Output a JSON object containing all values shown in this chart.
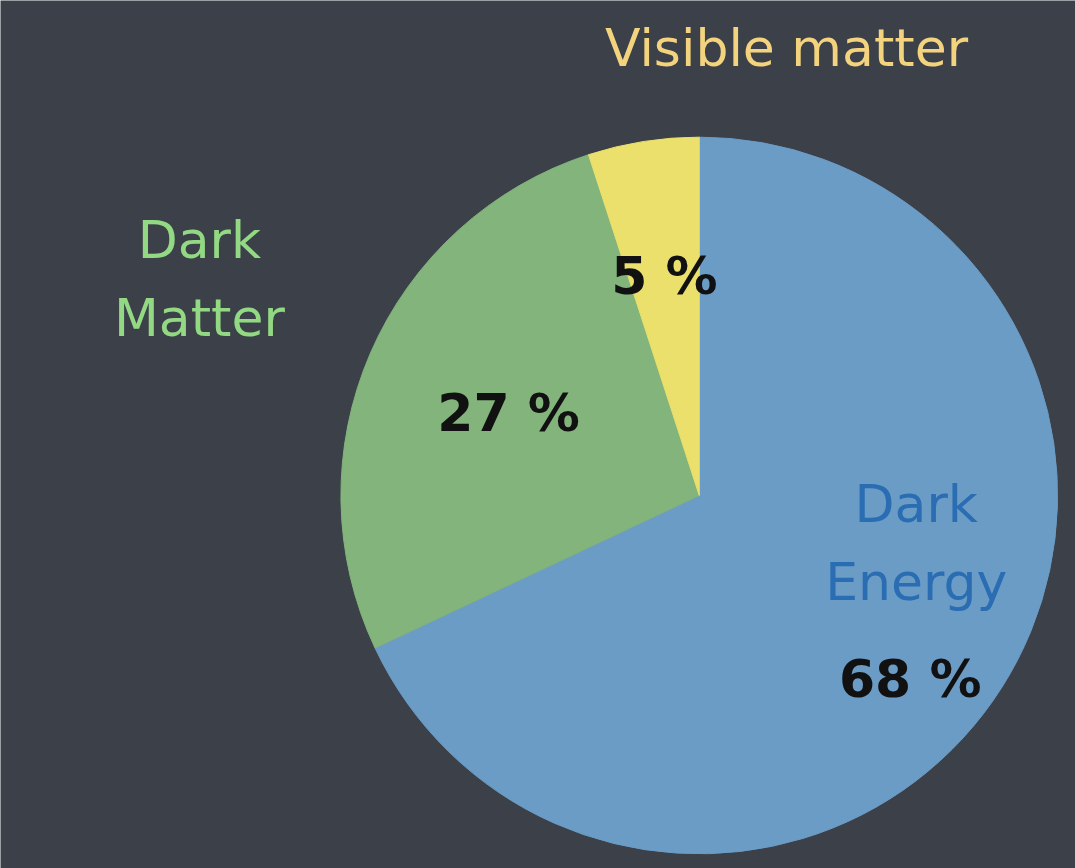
{
  "chart_data": {
    "type": "pie",
    "categories": [
      "Dark Energy",
      "Dark Matter",
      "Visible matter"
    ],
    "values": [
      68,
      27,
      5
    ],
    "colors": [
      "#6b9cc6",
      "#82b47c",
      "#ebe06c"
    ],
    "value_labels": [
      "68 %",
      "27 %",
      "5 %"
    ]
  }
}
